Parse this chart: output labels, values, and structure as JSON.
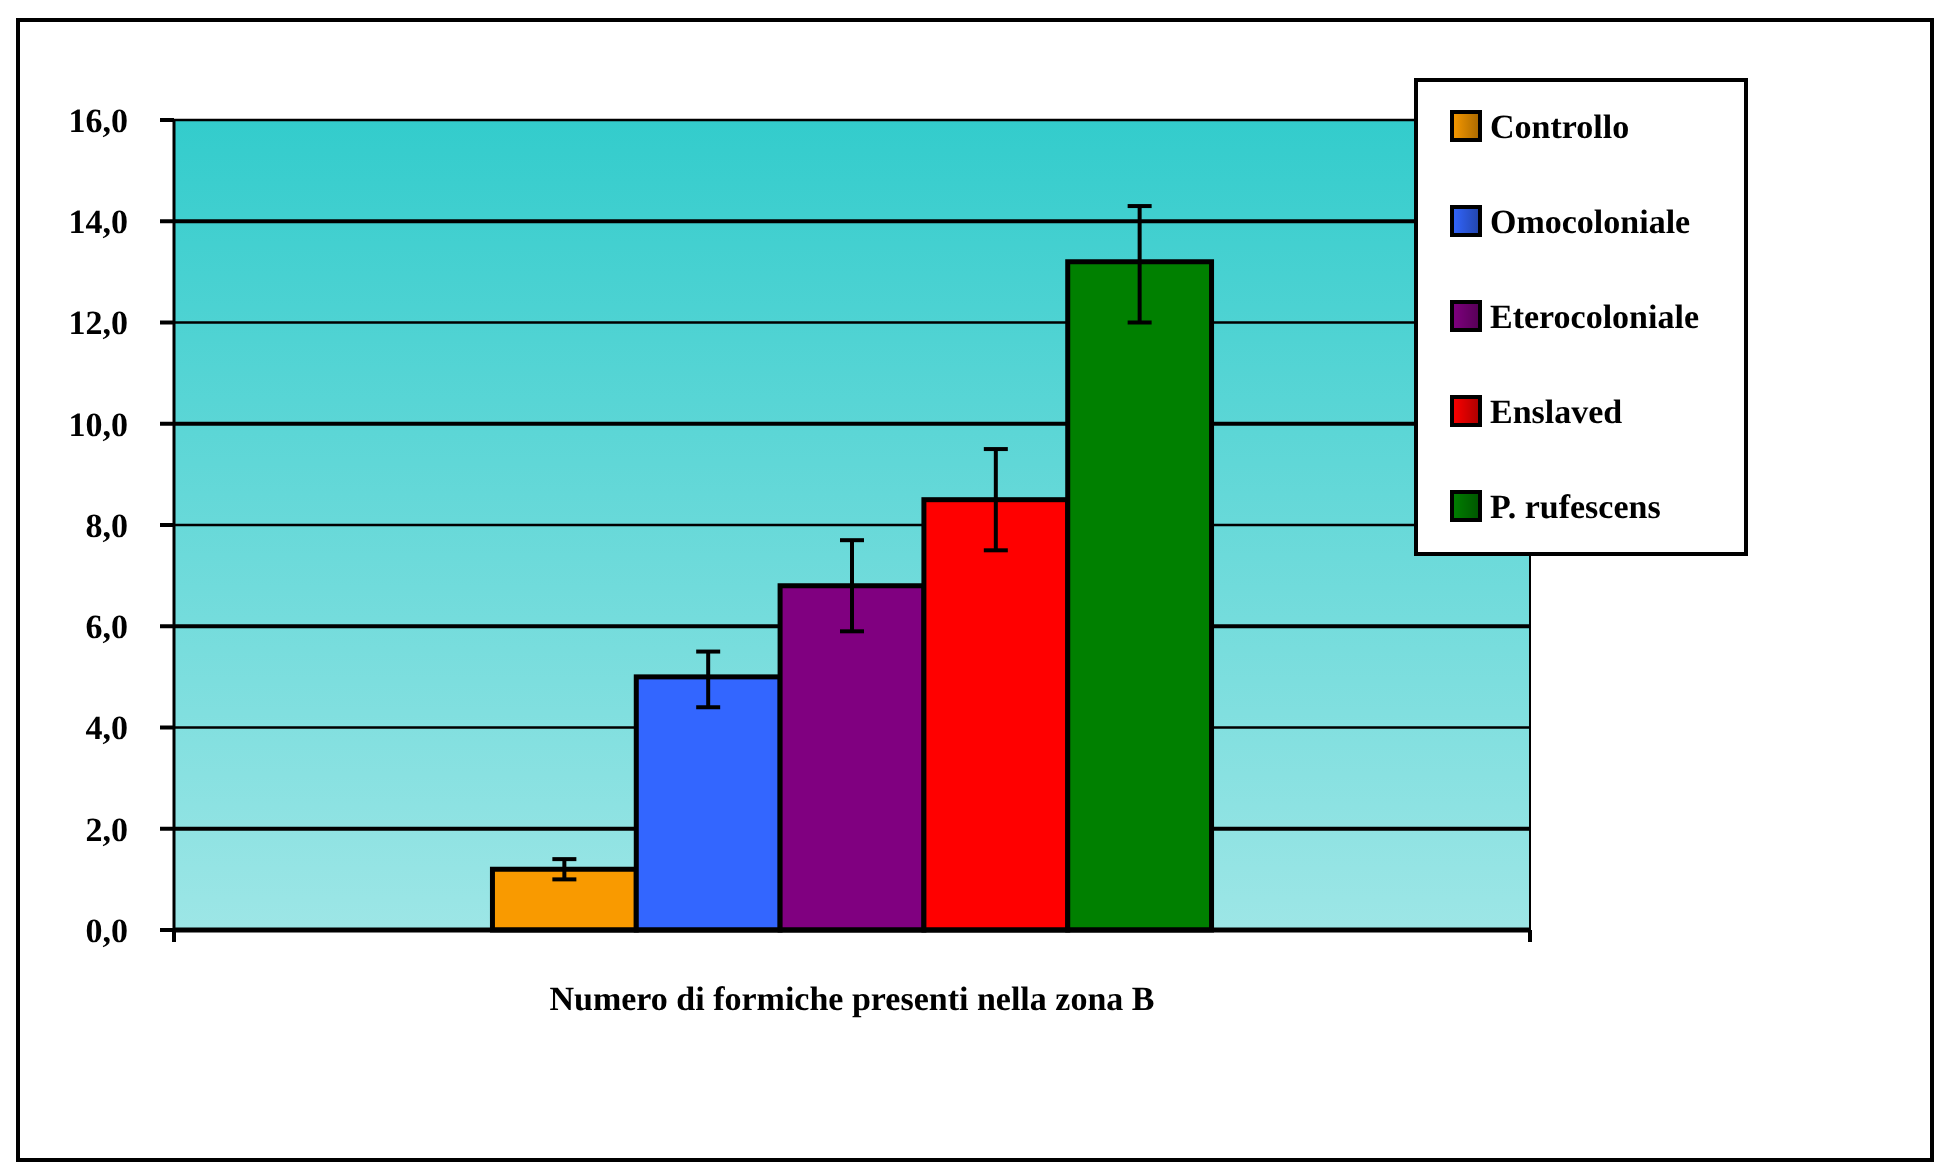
{
  "chart_data": {
    "type": "bar",
    "xlabel": "Numero di formiche presenti nella zona B",
    "categories": [
      null
    ],
    "series": [
      {
        "name": "Controllo",
        "color": "#f99a00",
        "values": [
          1.2
        ],
        "errors": [
          [
            1.0,
            1.4
          ]
        ]
      },
      {
        "name": "Omocoloniale",
        "color": "#3366ff",
        "values": [
          5.0
        ],
        "errors": [
          [
            4.4,
            5.5
          ]
        ]
      },
      {
        "name": "Eterocoloniale",
        "color": "#800080",
        "values": [
          6.8
        ],
        "errors": [
          [
            5.9,
            7.7
          ]
        ]
      },
      {
        "name": "Enslaved",
        "color": "#ff0000",
        "values": [
          8.5
        ],
        "errors": [
          [
            7.5,
            9.5
          ]
        ]
      },
      {
        "name": "P. rufescens",
        "color": "#008000",
        "values": [
          13.2
        ],
        "errors": [
          [
            12.0,
            14.3
          ]
        ]
      }
    ],
    "ylim": [
      0,
      16
    ],
    "yticks": [
      {
        "value": 0,
        "label": "0,0"
      },
      {
        "value": 2,
        "label": "2,0"
      },
      {
        "value": 4,
        "label": "4,0"
      },
      {
        "value": 6,
        "label": "6,0"
      },
      {
        "value": 8,
        "label": "8,0"
      },
      {
        "value": 10,
        "label": "10,0"
      },
      {
        "value": 12,
        "label": "12,0"
      },
      {
        "value": 14,
        "label": "14,0"
      },
      {
        "value": 16,
        "label": "16,0"
      }
    ],
    "grid": "y",
    "legend": "top right"
  }
}
